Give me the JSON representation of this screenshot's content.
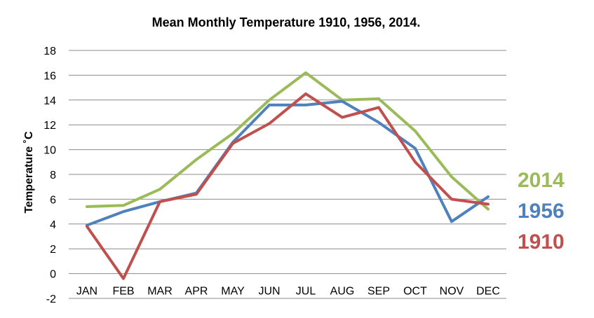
{
  "chart_data": {
    "type": "line",
    "title": "Mean Monthly Temperature 1910, 1956, 2014.",
    "xlabel": "",
    "ylabel": "Temperature ˚C",
    "ylim": [
      -2,
      18
    ],
    "ystep": 2,
    "yticks": [
      "-2",
      "0",
      "2",
      "4",
      "6",
      "8",
      "10",
      "12",
      "14",
      "16",
      "18"
    ],
    "grid": "horizontal",
    "legend_placement": "right",
    "categories": [
      "JAN",
      "FEB",
      "MAR",
      "APR",
      "MAY",
      "JUN",
      "JUL",
      "AUG",
      "SEP",
      "OCT",
      "NOV",
      "DEC"
    ],
    "series": [
      {
        "name": "2014",
        "color": "#9bbb59",
        "values": [
          5.4,
          5.5,
          6.8,
          9.2,
          11.3,
          14.0,
          16.2,
          14.0,
          14.1,
          11.5,
          7.8,
          5.2
        ]
      },
      {
        "name": "1956",
        "color": "#4f81bd",
        "values": [
          3.9,
          5.0,
          5.8,
          6.5,
          10.6,
          13.6,
          13.6,
          13.9,
          12.2,
          10.1,
          4.2,
          6.2
        ]
      },
      {
        "name": "1910",
        "color": "#c0504d",
        "values": [
          3.8,
          -0.4,
          5.8,
          6.4,
          10.5,
          12.1,
          14.5,
          12.6,
          13.4,
          9.0,
          6.0,
          5.6
        ]
      }
    ]
  }
}
